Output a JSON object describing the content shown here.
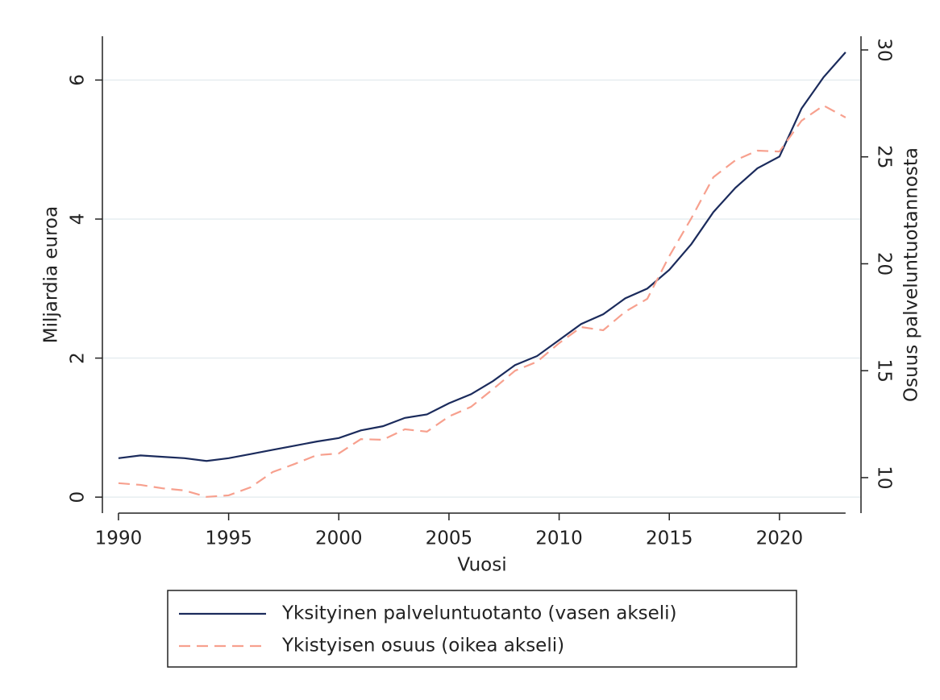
{
  "chart_data": {
    "type": "line",
    "xlabel": "Vuosi",
    "ylabel": "Miljardia euroa",
    "y2label": "Osuus palveluntuotannosta",
    "x": [
      1990,
      1991,
      1992,
      1993,
      1994,
      1995,
      1996,
      1997,
      1998,
      1999,
      2000,
      2001,
      2002,
      2003,
      2004,
      2005,
      2006,
      2007,
      2008,
      2009,
      2010,
      2011,
      2012,
      2013,
      2014,
      2015,
      2016,
      2017,
      2018,
      2019,
      2020,
      2021,
      2022,
      2023
    ],
    "series": [
      {
        "name": "Yksityinen palveluntuotanto (vasen akseli)",
        "color": "#1b2b5c",
        "dash": false,
        "axis": "y",
        "values": [
          0.56,
          0.6,
          0.58,
          0.56,
          0.52,
          0.56,
          0.62,
          0.68,
          0.74,
          0.8,
          0.85,
          0.96,
          1.02,
          1.14,
          1.19,
          1.35,
          1.48,
          1.67,
          1.9,
          2.03,
          2.26,
          2.49,
          2.63,
          2.86,
          3.0,
          3.27,
          3.64,
          4.1,
          4.45,
          4.73,
          4.9,
          5.59,
          6.04,
          6.4
        ]
      },
      {
        "name": "Ykistyisen osuus (oikea akseli)",
        "color": "#f7a08e",
        "dash": true,
        "axis": "y2",
        "values": [
          9.74,
          9.66,
          9.5,
          9.4,
          9.1,
          9.17,
          9.55,
          10.26,
          10.64,
          11.05,
          11.13,
          11.8,
          11.77,
          12.26,
          12.15,
          12.86,
          13.31,
          14.14,
          15.0,
          15.42,
          16.29,
          17.04,
          16.89,
          17.76,
          18.36,
          20.36,
          22.13,
          24.05,
          24.84,
          25.29,
          25.25,
          26.69,
          27.4,
          26.84
        ]
      }
    ],
    "xlim": [
      1989.27,
      2023.7
    ],
    "xticks": [
      1990,
      1995,
      2000,
      2005,
      2010,
      2015,
      2020
    ],
    "ylim": [
      -0.23,
      6.63
    ],
    "yticks": [
      0,
      2,
      4,
      6
    ],
    "y2lim": [
      8.34,
      30.64
    ],
    "y2ticks": [
      10,
      15,
      20,
      25,
      30
    ],
    "grid": true
  }
}
